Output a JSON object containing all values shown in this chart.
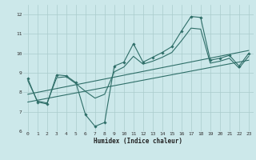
{
  "bg_color": "#cce8ea",
  "grid_color": "#aacccc",
  "line_color": "#2e6e68",
  "xlabel": "Humidex (Indice chaleur)",
  "ylim": [
    6,
    12.5
  ],
  "xlim": [
    -0.5,
    23.5
  ],
  "yticks": [
    6,
    7,
    8,
    9,
    10,
    11,
    12
  ],
  "xticks": [
    0,
    1,
    2,
    3,
    4,
    5,
    6,
    7,
    8,
    9,
    10,
    11,
    12,
    13,
    14,
    15,
    16,
    17,
    18,
    19,
    20,
    21,
    22,
    23
  ],
  "line_jagged": {
    "x": [
      0,
      1,
      2,
      3,
      4,
      5,
      6,
      7,
      8,
      9,
      10,
      11,
      12,
      13,
      14,
      15,
      16,
      17,
      18,
      19,
      20,
      21,
      22,
      23
    ],
    "y": [
      8.7,
      7.5,
      7.4,
      8.9,
      8.85,
      8.5,
      6.85,
      6.25,
      6.45,
      9.35,
      9.55,
      10.5,
      9.55,
      9.8,
      10.05,
      10.35,
      11.15,
      11.9,
      11.85,
      9.65,
      9.75,
      9.9,
      9.35,
      10.0
    ]
  },
  "line_smooth": {
    "x": [
      0,
      1,
      2,
      3,
      4,
      5,
      6,
      7,
      8,
      9,
      10,
      11,
      12,
      13,
      14,
      15,
      16,
      17,
      18,
      19,
      20,
      21,
      22,
      23
    ],
    "y": [
      8.6,
      7.55,
      7.45,
      8.75,
      8.8,
      8.45,
      8.05,
      7.7,
      7.9,
      9.05,
      9.3,
      9.85,
      9.45,
      9.6,
      9.8,
      10.05,
      10.65,
      11.3,
      11.25,
      9.5,
      9.6,
      9.75,
      9.25,
      9.85
    ]
  },
  "trend1": [
    7.5,
    9.65
  ],
  "trend2": [
    7.9,
    10.15
  ]
}
